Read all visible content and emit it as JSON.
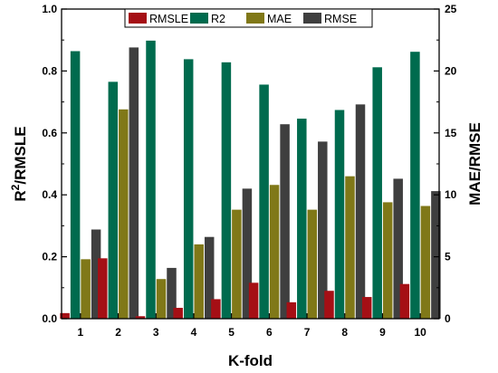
{
  "chart_data": {
    "type": "bar",
    "xlabel": "K-fold",
    "ylabel_left": "R²/RMSLE",
    "ylabel_right": "MAE/RMSE",
    "categories": [
      "1",
      "2",
      "3",
      "4",
      "5",
      "6",
      "7",
      "8",
      "9",
      "10"
    ],
    "ylim_left": [
      0,
      1.0
    ],
    "ylim_right": [
      0,
      25
    ],
    "yticks_left": [
      "0.0",
      "0.2",
      "0.4",
      "0.6",
      "0.8",
      "1.0"
    ],
    "yticks_right": [
      "0",
      "5",
      "10",
      "15",
      "20",
      "25"
    ],
    "legend_position": "top-center",
    "grid": false,
    "series": [
      {
        "name": "RMSLE",
        "axis": "left",
        "color": "#a50f15",
        "values": [
          0.018,
          0.195,
          0.008,
          0.035,
          0.063,
          0.116,
          0.053,
          0.09,
          0.07,
          0.112
        ]
      },
      {
        "name": "R2",
        "axis": "left",
        "color": "#006b4e",
        "values": [
          0.864,
          0.765,
          0.898,
          0.838,
          0.828,
          0.756,
          0.646,
          0.674,
          0.812,
          0.862
        ]
      },
      {
        "name": "MAE",
        "axis": "right",
        "color": "#807818",
        "values": [
          4.8,
          16.9,
          3.2,
          6.0,
          8.8,
          10.8,
          8.8,
          11.5,
          9.4,
          9.1
        ]
      },
      {
        "name": "RMSE",
        "axis": "right",
        "color": "#3f3f3f",
        "values": [
          7.2,
          21.9,
          4.1,
          6.6,
          10.5,
          15.7,
          14.3,
          17.3,
          11.3,
          10.3
        ]
      }
    ]
  }
}
